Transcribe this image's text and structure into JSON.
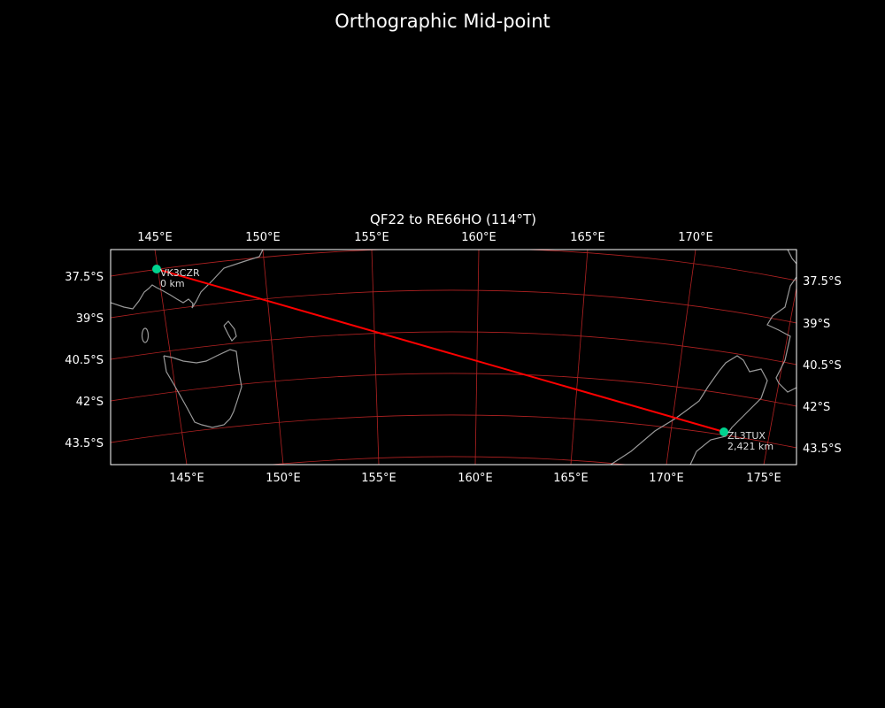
{
  "figure_title": "Orthographic Mid-point",
  "map": {
    "title": "QF22 to RE66HO (114°T)",
    "projection": "orthographic",
    "top_lon_labels": [
      "145°E",
      "150°E",
      "155°E",
      "160°E",
      "165°E",
      "170°E"
    ],
    "bottom_lon_labels": [
      "145°E",
      "150°E",
      "155°E",
      "160°E",
      "165°E",
      "170°E",
      "175°E"
    ],
    "left_lat_labels": [
      "37.5°S",
      "39°S",
      "40.5°S",
      "42°S",
      "43.5°S"
    ],
    "right_lat_labels": [
      "37.5°S",
      "39°S",
      "40.5°S",
      "42°S",
      "43.5°S"
    ],
    "stations": [
      {
        "call": "VK3CZR",
        "distance": "0 km"
      },
      {
        "call": "ZL3TUX",
        "distance": "2,421 km"
      }
    ],
    "colors": {
      "background": "#000000",
      "gridlines": "#b22222",
      "path": "#ff0000",
      "station_marker": "#00d38f",
      "coastline": "#999999",
      "frame": "#ffffff"
    }
  }
}
